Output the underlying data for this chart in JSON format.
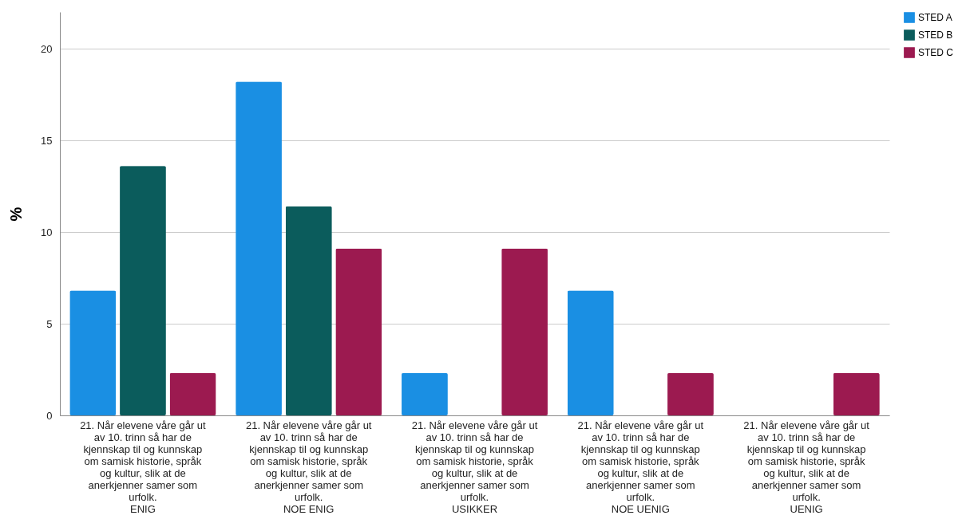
{
  "chart_data": {
    "type": "bar",
    "ylabel": "%",
    "categories": [
      "21. Når elevene våre går ut av 10. trinn så har de kjennskap til og kunnskap om samisk historie, språk og kultur, slik at de anerkjenner samer som urfolk.\nENIG",
      "21. Når elevene våre går ut av 10. trinn så har de kjennskap til og kunnskap om samisk historie, språk og kultur, slik at de anerkjenner samer som urfolk.\nNOE ENIG",
      "21. Når elevene våre går ut av 10. trinn så har de kjennskap til og kunnskap om samisk historie, språk og kultur, slik at de anerkjenner samer som urfolk.\nUSIKKER",
      "21. Når elevene våre går ut av 10. trinn så har de kjennskap til og kunnskap om samisk historie, språk og kultur, slik at de anerkjenner samer som urfolk.\nNOE UENIG",
      "21. Når elevene våre går ut av 10. trinn så har de kjennskap til og kunnskap om samisk historie, språk og kultur, slik at de anerkjenner samer som urfolk.\nUENIG"
    ],
    "series": [
      {
        "name": "STED A",
        "color": "#1a8fe3",
        "values": [
          6.8,
          18.2,
          2.3,
          6.8,
          0
        ]
      },
      {
        "name": "STED B",
        "color": "#0b5c5c",
        "values": [
          13.6,
          11.4,
          0,
          0,
          0
        ]
      },
      {
        "name": "STED C",
        "color": "#9c1a50",
        "values": [
          2.3,
          9.1,
          9.1,
          2.3,
          2.3
        ]
      }
    ],
    "ylim": [
      0,
      22
    ],
    "yticks": [
      0,
      5,
      10,
      15,
      20
    ],
    "grid": "y",
    "legend": "top right"
  }
}
